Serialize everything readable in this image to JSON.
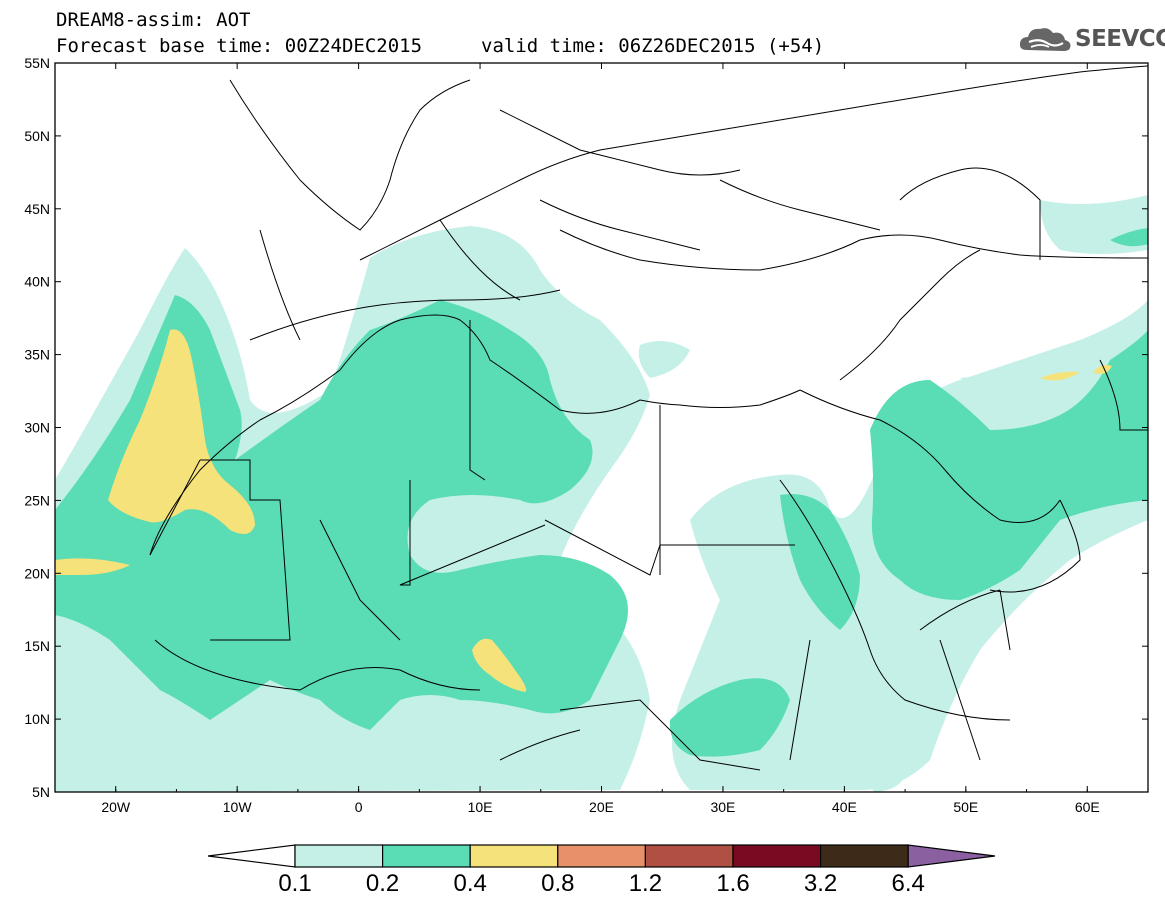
{
  "header": {
    "line1": "DREAM8-assim: AOT",
    "line2": "Forecast base time: 00Z24DEC2015",
    "line3": "valid time: 06Z26DEC2015 (+54)"
  },
  "logo": {
    "text": "SEEVCCC"
  },
  "map": {
    "lat_labels": [
      "55N",
      "50N",
      "45N",
      "40N",
      "35N",
      "30N",
      "25N",
      "20N",
      "15N",
      "10N",
      "5N"
    ],
    "lon_labels": [
      "20W",
      "10W",
      "0",
      "10E",
      "20E",
      "30E",
      "40E",
      "50E",
      "60E"
    ],
    "lat_range": [
      5,
      55
    ],
    "lon_range": [
      -25,
      65
    ]
  },
  "legend": {
    "boundaries": [
      "0.1",
      "0.2",
      "0.4",
      "0.8",
      "1.2",
      "1.6",
      "3.2",
      "6.4"
    ],
    "colors": [
      "#ffffff",
      "#c4f0e8",
      "#5adcb4",
      "#f5e27a",
      "#e8906a",
      "#b05042",
      "#7a0a22",
      "#3e2a18",
      "#8a60a0"
    ]
  }
}
